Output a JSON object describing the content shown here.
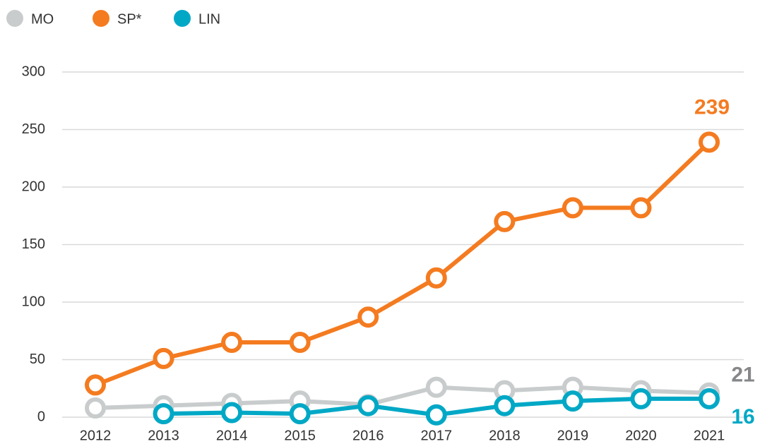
{
  "chart_data": {
    "type": "line",
    "categories": [
      "2012",
      "2013",
      "2014",
      "2015",
      "2016",
      "2017",
      "2018",
      "2019",
      "2020",
      "2021"
    ],
    "series": [
      {
        "name": "MO",
        "color": "#c9cccd",
        "label_color": "#858789",
        "values": [
          8,
          10,
          12,
          14,
          11,
          26,
          23,
          26,
          23,
          21
        ]
      },
      {
        "name": "SP*",
        "color": "#f47b20",
        "label_color": "#f47b20",
        "values": [
          28,
          51,
          65,
          65,
          87,
          121,
          170,
          182,
          182,
          239
        ]
      },
      {
        "name": "LIN",
        "color": "#00a8c6",
        "label_color": "#00a8c6",
        "values": [
          null,
          3,
          4,
          3,
          10,
          2,
          10,
          14,
          16,
          16
        ]
      }
    ],
    "ylim": [
      0,
      300
    ],
    "yticks": [
      0,
      50,
      100,
      150,
      200,
      250,
      300
    ],
    "grid": true,
    "legend": "top-left"
  }
}
